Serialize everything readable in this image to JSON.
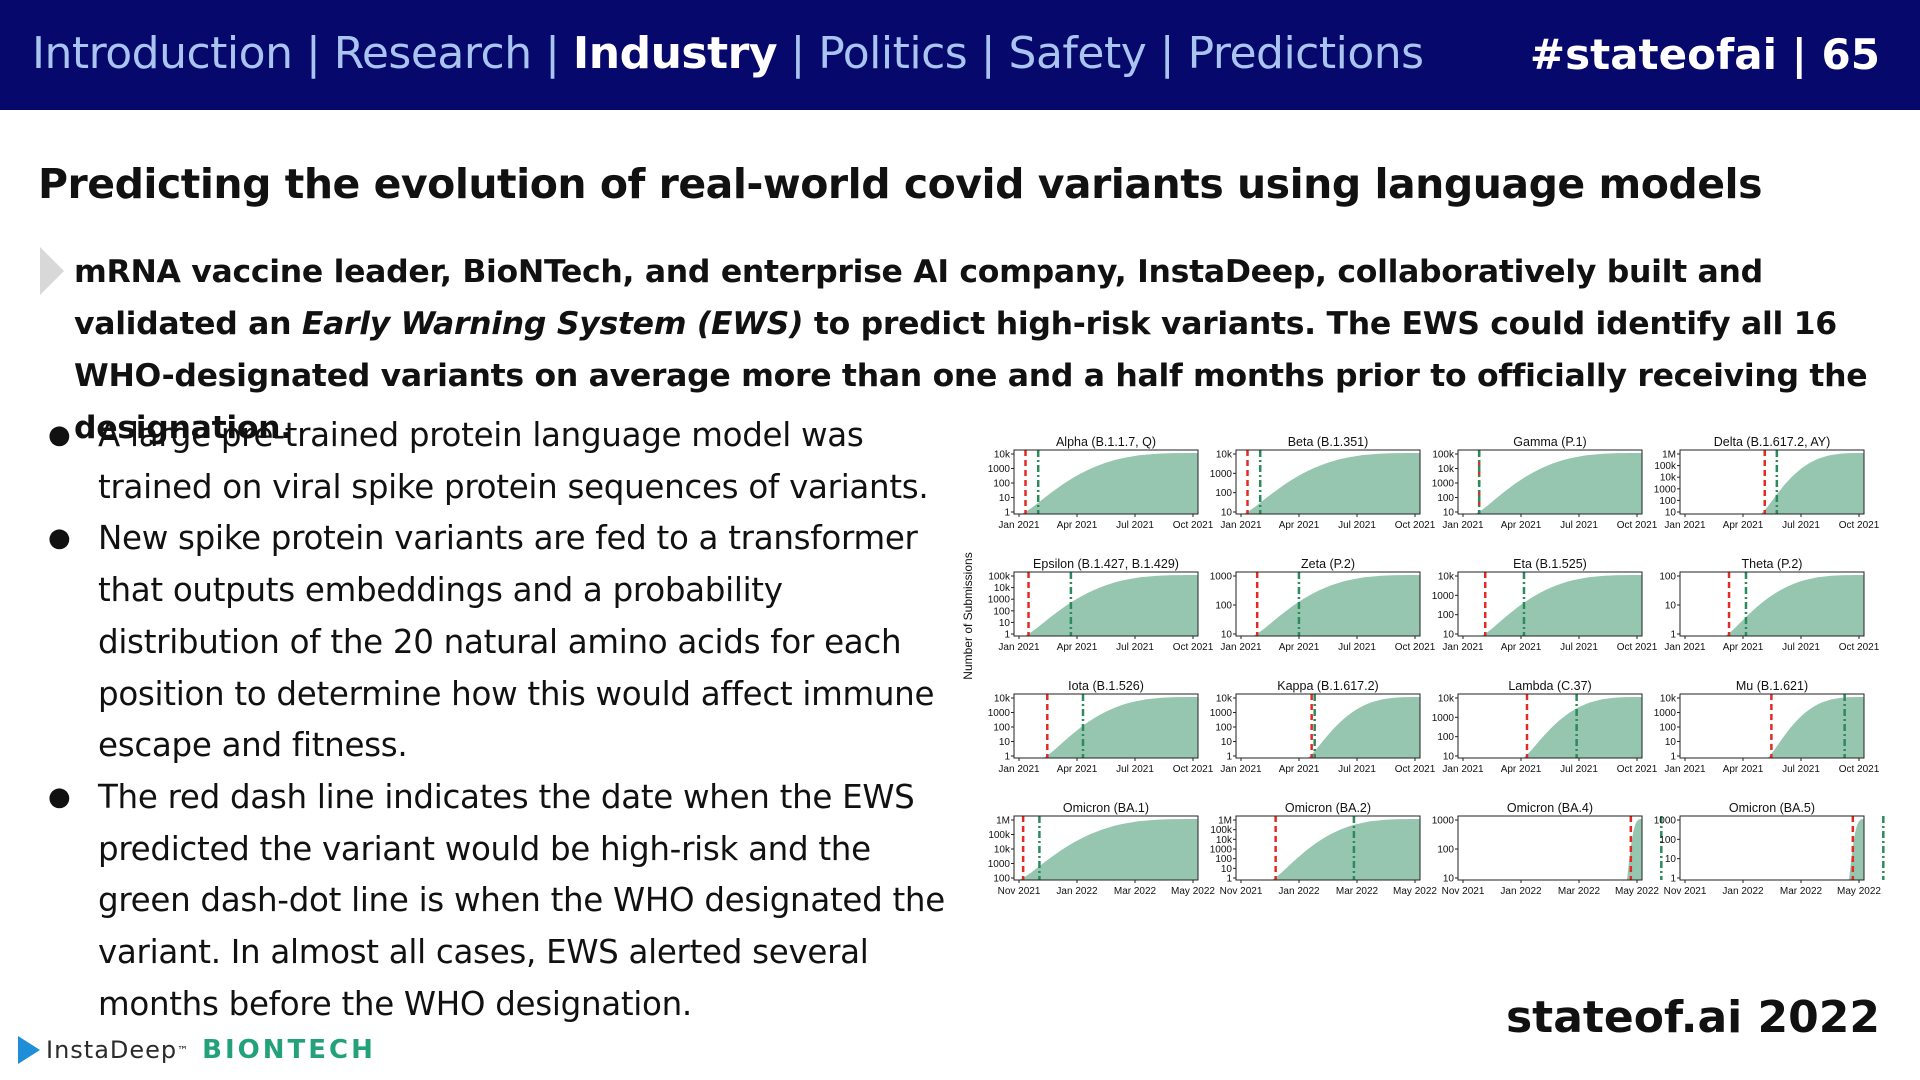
{
  "nav": {
    "items": [
      "Introduction",
      "Research",
      "Industry",
      "Politics",
      "Safety",
      "Predictions"
    ],
    "active": "Industry",
    "separator": " | "
  },
  "tagline": "#stateofai | 65",
  "title": "Predicting the evolution of real-world covid variants using language models",
  "lead": {
    "part1": "mRNA vaccine leader, BioNTech, and enterprise AI company, InstaDeep, collaboratively built and validated an ",
    "italic": "Early Warning System (EWS)",
    "part2": " to predict high-risk variants. The EWS could identify all 16 WHO-designated variants on average more than one and a half months prior to officially receiving the designation."
  },
  "bullets": [
    "A large pre-trained protein language model was trained on viral spike protein sequences of variants.",
    "New spike protein variants are fed to a transformer that outputs embeddings and a probability distribution of the 20 natural amino acids for each position to determine how this would affect immune escape and fitness.",
    "The red dash line indicates the date when the EWS predicted the variant would be high-risk and the green dash-dot line is when the WHO designated the variant. In almost all cases, EWS alerted several months before the WHO designation."
  ],
  "footer": {
    "instadeep": "InstaDeep",
    "tm": "™",
    "biontech": "BIONTECH",
    "brand": "stateof.ai 2022"
  },
  "colors": {
    "header_bg": "#07086b",
    "nav_inactive": "#a9c4ee",
    "area_fill": "#96c6b0",
    "ews_line": "#e32b24",
    "who_line": "#2c8a5c"
  },
  "chart_data": {
    "type": "area",
    "ylabel": "Number of Submissions",
    "scale": "log",
    "axis_sets": {
      "a": {
        "xrange": [
          "2020-12",
          "2021-10"
        ],
        "ticks": [
          "Jan 2021",
          "Apr 2021",
          "Jul 2021",
          "Oct 2021"
        ]
      },
      "b": {
        "xrange": [
          "2021-11",
          "2022-05"
        ],
        "ticks": [
          "Nov 2021",
          "Jan 2022",
          "Mar 2022",
          "May 2022"
        ]
      }
    },
    "panels": [
      {
        "title": "Alpha (B.1.1.7, Q)",
        "axis": "a",
        "yticks": [
          "10k",
          "1000",
          "100",
          "10",
          "1"
        ],
        "ews": "2020-12-20",
        "who": "2021-01-10"
      },
      {
        "title": "Beta (B.1.351)",
        "axis": "a",
        "yticks": [
          "10k",
          "1000",
          "100",
          "10"
        ],
        "ews": "2020-12-20",
        "who": "2021-01-10"
      },
      {
        "title": "Gamma (P.1)",
        "axis": "a",
        "yticks": [
          "100k",
          "10k",
          "1000",
          "100",
          "10"
        ],
        "ews": "2021-01-05",
        "who": "2021-01-05"
      },
      {
        "title": "Delta (B.1.617.2, AY)",
        "axis": "a",
        "yticks": [
          "1M",
          "100k",
          "10k",
          "1000",
          "100",
          "10"
        ],
        "ews": "2021-04-20",
        "who": "2021-05-10"
      },
      {
        "title": "Epsilon (B.1.427, B.1.429)",
        "axis": "a",
        "yticks": [
          "100k",
          "10k",
          "1000",
          "100",
          "10",
          "1"
        ],
        "ews": "2020-12-25",
        "who": "2021-03-05"
      },
      {
        "title": "Zeta (P.2)",
        "axis": "a",
        "yticks": [
          "1000",
          "100",
          "10"
        ],
        "ews": "2021-01-05",
        "who": "2021-03-15"
      },
      {
        "title": "Eta (B.1.525)",
        "axis": "a",
        "yticks": [
          "10k",
          "1000",
          "100",
          "10"
        ],
        "ews": "2021-01-15",
        "who": "2021-03-20"
      },
      {
        "title": "Theta (P.2)",
        "axis": "a",
        "yticks": [
          "100",
          "10",
          "1"
        ],
        "ews": "2021-02-20",
        "who": "2021-03-20"
      },
      {
        "title": "Iota (B.1.526)",
        "axis": "a",
        "yticks": [
          "10k",
          "1000",
          "100",
          "10",
          "1"
        ],
        "ews": "2021-01-25",
        "who": "2021-03-25"
      },
      {
        "title": "Kappa (B.1.617.2)",
        "axis": "a",
        "yticks": [
          "10k",
          "1000",
          "100",
          "10",
          "1"
        ],
        "ews": "2021-04-05",
        "who": "2021-04-10"
      },
      {
        "title": "Lambda (C.37)",
        "axis": "a",
        "yticks": [
          "10k",
          "1000",
          "100",
          "10"
        ],
        "ews": "2021-03-25",
        "who": "2021-06-15"
      },
      {
        "title": "Mu (B.1.621)",
        "axis": "a",
        "yticks": [
          "10k",
          "1000",
          "100",
          "10",
          "1"
        ],
        "ews": "2021-05-01",
        "who": "2021-08-30"
      },
      {
        "title": "Omicron (BA.1)",
        "axis": "b",
        "yticks": [
          "1M",
          "100k",
          "10k",
          "1000",
          "100"
        ],
        "ews": "2021-11-10",
        "who": "2021-11-26"
      },
      {
        "title": "Omicron (BA.2)",
        "axis": "b",
        "yticks": [
          "1M",
          "100k",
          "10k",
          "1000",
          "100",
          "10",
          "1"
        ],
        "ews": "2021-12-10",
        "who": "2022-02-25"
      },
      {
        "title": "Omicron (BA.4)",
        "axis": "b",
        "yticks": [
          "1000",
          "100",
          "10"
        ],
        "ews": "2022-04-20",
        "who": "2022-05-20"
      },
      {
        "title": "Omicron (BA.5)",
        "axis": "b",
        "yticks": [
          "1000",
          "100",
          "10",
          "1"
        ],
        "ews": "2022-04-20",
        "who": "2022-05-20"
      }
    ]
  }
}
